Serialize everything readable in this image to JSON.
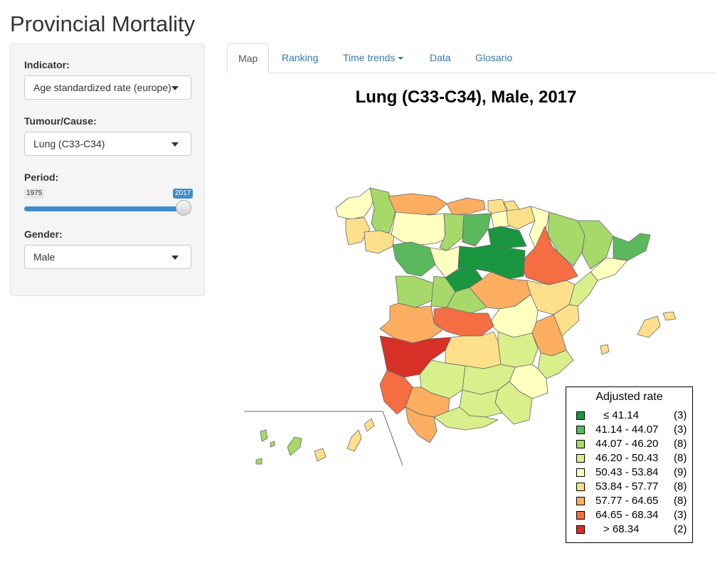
{
  "app": {
    "title": "Provincial Mortality"
  },
  "sidebar": {
    "indicator": {
      "label": "Indicator:",
      "value": "Age standardized rate (europe)"
    },
    "tumour": {
      "label": "Tumour/Cause:",
      "value": "Lung (C33-C34)"
    },
    "period": {
      "label": "Period:",
      "min_label": "1975",
      "max_label": "2017",
      "range": [
        1975,
        2017
      ],
      "value": 2017,
      "fill_fraction": 1.0
    },
    "gender": {
      "label": "Gender:",
      "value": "Male"
    }
  },
  "tabs": [
    {
      "label": "Map",
      "active": true,
      "dropdown": false
    },
    {
      "label": "Ranking",
      "active": false,
      "dropdown": false
    },
    {
      "label": "Time trends",
      "active": false,
      "dropdown": true
    },
    {
      "label": "Data",
      "active": false,
      "dropdown": false
    },
    {
      "label": "Glosario",
      "active": false,
      "dropdown": false
    }
  ],
  "map": {
    "title": "Lung (C33-C34), Male, 2017",
    "legend": {
      "title": "Adjusted rate",
      "classes": [
        {
          "label": "≤ 41.14",
          "count": "(3)",
          "color": "#1a9641"
        },
        {
          "label": "41.14 - 44.07",
          "count": "(3)",
          "color": "#5cb85c"
        },
        {
          "label": "44.07 - 46.20",
          "count": "(8)",
          "color": "#a6d96a"
        },
        {
          "label": "46.20 - 50.43",
          "count": "(8)",
          "color": "#d9ef8b"
        },
        {
          "label": "50.43 - 53.84",
          "count": "(9)",
          "color": "#ffffbf"
        },
        {
          "label": "53.84 - 57.77",
          "count": "(8)",
          "color": "#fee08b"
        },
        {
          "label": "57.77 - 64.65",
          "count": "(8)",
          "color": "#fdae61"
        },
        {
          "label": "64.65 - 68.34",
          "count": "(3)",
          "color": "#f46d43"
        },
        {
          "label": "> 68.34",
          "count": "(2)",
          "color": "#d73027"
        }
      ]
    }
  }
}
